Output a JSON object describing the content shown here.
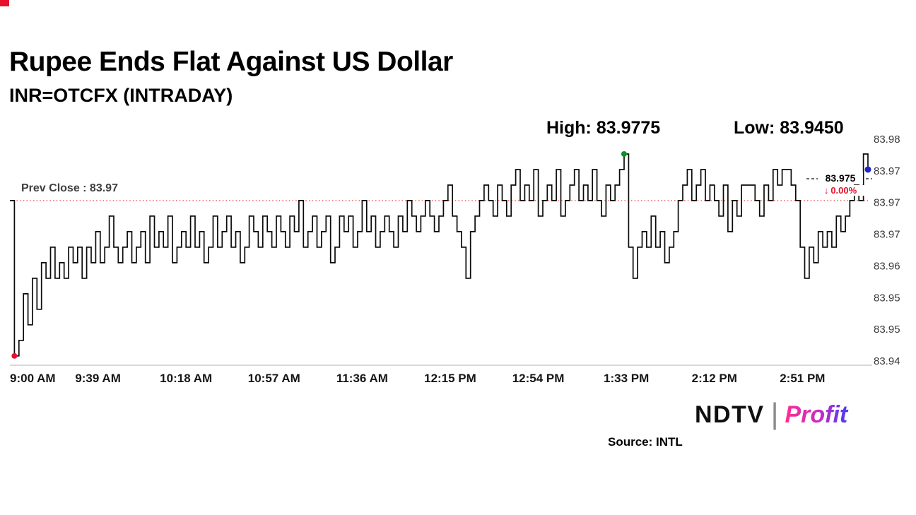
{
  "page": {
    "title": "Rupee Ends Flat Against US Dollar",
    "subtitle": "INR=OTCFX (INTRADAY)",
    "source": "Source: INTL",
    "brand": {
      "ndtv": "NDTV",
      "separator": "|",
      "profit": "Profit"
    }
  },
  "annotations": {
    "high_label": "High: 83.9775",
    "low_label": "Low: 83.9450",
    "prev_close_label": "Prev Close : 83.97",
    "last_price_label": "83.975",
    "change_arrow": "↓",
    "change_value": "0.00%"
  },
  "colors": {
    "line": "#0a0a0a",
    "prev_close_line": "#e8342a",
    "last_price_dash": "#111111",
    "marker_low": "#e8112d",
    "marker_high": "#0e8f2a",
    "marker_last": "#2222cc",
    "negative": "#e8112d",
    "axis": "#cbcbcb",
    "accent_red": "#e8112d"
  },
  "chart_data": {
    "type": "line",
    "title": "INR=OTCFX (INTRADAY)",
    "interpolation": "step-after",
    "grid": false,
    "x_unit": "minutes since 9:00 AM",
    "x_step_minutes": 2,
    "xlim": [
      0,
      380
    ],
    "ylim": [
      83.94,
      83.98
    ],
    "x_ticks": [
      0,
      39,
      78,
      117,
      156,
      195,
      234,
      273,
      312,
      351
    ],
    "x_tick_labels": [
      "9:00 AM",
      "9:39 AM",
      "10:18 AM",
      "10:57 AM",
      "11:36 AM",
      "12:15 PM",
      "12:54 PM",
      "1:33 PM",
      "2:12 PM",
      "2:51 PM"
    ],
    "y_tick_labels": [
      "83.98",
      "83.97",
      "83.97",
      "83.97",
      "83.96",
      "83.95",
      "83.95",
      "83.94"
    ],
    "prev_close": 83.97,
    "high": 83.9775,
    "low": 83.945,
    "last": 83.975,
    "change_pct": "0.00%",
    "values": [
      83.97,
      83.945,
      83.9475,
      83.955,
      83.95,
      83.9575,
      83.9525,
      83.96,
      83.9575,
      83.9625,
      83.9575,
      83.96,
      83.9575,
      83.9625,
      83.96,
      83.9625,
      83.9575,
      83.9625,
      83.96,
      83.965,
      83.96,
      83.9625,
      83.9675,
      83.9625,
      83.96,
      83.9625,
      83.965,
      83.96,
      83.9625,
      83.965,
      83.96,
      83.9675,
      83.9625,
      83.965,
      83.9625,
      83.9675,
      83.96,
      83.9625,
      83.965,
      83.9625,
      83.9675,
      83.9625,
      83.965,
      83.96,
      83.9625,
      83.9675,
      83.9625,
      83.965,
      83.9675,
      83.9625,
      83.965,
      83.96,
      83.9625,
      83.9675,
      83.965,
      83.9625,
      83.9675,
      83.965,
      83.9625,
      83.9675,
      83.965,
      83.9625,
      83.9675,
      83.965,
      83.97,
      83.9625,
      83.965,
      83.9675,
      83.9625,
      83.965,
      83.9675,
      83.96,
      83.9625,
      83.9675,
      83.965,
      83.9675,
      83.9625,
      83.965,
      83.97,
      83.965,
      83.9675,
      83.9625,
      83.965,
      83.9675,
      83.965,
      83.9625,
      83.9675,
      83.965,
      83.97,
      83.9675,
      83.965,
      83.9675,
      83.97,
      83.9675,
      83.965,
      83.9675,
      83.97,
      83.9725,
      83.9675,
      83.965,
      83.9625,
      83.9575,
      83.965,
      83.9675,
      83.97,
      83.9725,
      83.97,
      83.9675,
      83.9725,
      83.97,
      83.9675,
      83.9725,
      83.975,
      83.97,
      83.9725,
      83.97,
      83.975,
      83.9675,
      83.97,
      83.9725,
      83.97,
      83.975,
      83.9675,
      83.97,
      83.9725,
      83.975,
      83.97,
      83.9725,
      83.97,
      83.975,
      83.97,
      83.9675,
      83.9725,
      83.97,
      83.9725,
      83.975,
      83.9775,
      83.9625,
      83.9575,
      83.9625,
      83.965,
      83.9625,
      83.9675,
      83.9625,
      83.965,
      83.96,
      83.9625,
      83.965,
      83.97,
      83.9725,
      83.975,
      83.97,
      83.9725,
      83.975,
      83.97,
      83.9725,
      83.97,
      83.9675,
      83.9725,
      83.965,
      83.97,
      83.9675,
      83.9725,
      83.9725,
      83.9725,
      83.97,
      83.9675,
      83.9725,
      83.97,
      83.975,
      83.9725,
      83.975,
      83.975,
      83.9725,
      83.97,
      83.9625,
      83.9575,
      83.9625,
      83.96,
      83.965,
      83.9625,
      83.965,
      83.9625,
      83.9675,
      83.965,
      83.9675,
      83.97,
      83.9725,
      83.97,
      83.9775,
      83.975
    ]
  }
}
